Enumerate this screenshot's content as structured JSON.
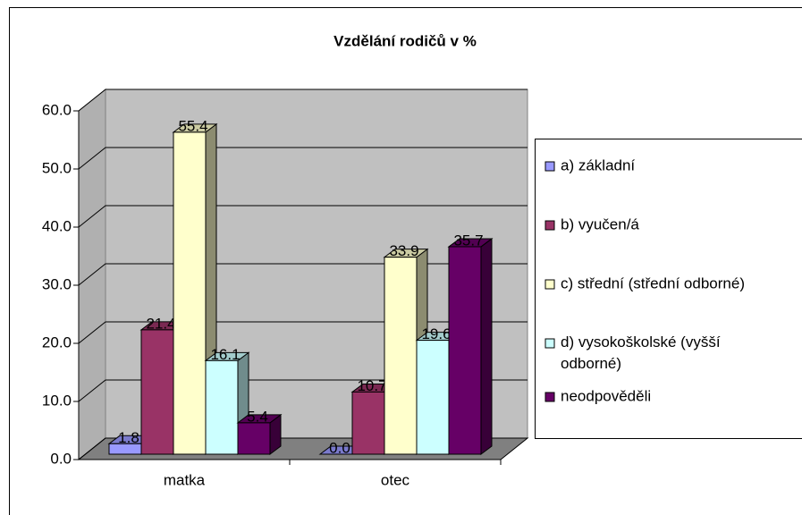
{
  "chart_data": {
    "type": "bar3d",
    "title": "Vzdělání rodičů v %",
    "categories": [
      "matka",
      "otec"
    ],
    "series": [
      {
        "name": "a) základní",
        "color": "#9999ff",
        "values": [
          1.8,
          0.0
        ],
        "value_labels": [
          "1.8",
          "0.0"
        ]
      },
      {
        "name": "b) vyučen/á",
        "color": "#993366",
        "values": [
          21.4,
          10.7
        ]
      },
      {
        "name": "c) střední (střední odborné)",
        "color": "#ffffcc",
        "values": [
          55.4,
          33.9
        ]
      },
      {
        "name": "d) vysokoškolské (vyšší odborné)",
        "color": "#ccffff",
        "values": [
          16.1,
          19.6
        ]
      },
      {
        "name": "neodpověděli",
        "color": "#660066",
        "values": [
          5.4,
          35.7
        ]
      }
    ],
    "ylim": [
      0,
      60
    ],
    "yticks": [
      {
        "value": 0,
        "label": "0.0"
      },
      {
        "value": 10,
        "label": "10.0"
      },
      {
        "value": 20,
        "label": "20.0"
      },
      {
        "value": 30,
        "label": "30.0"
      },
      {
        "value": 40,
        "label": "40.0"
      },
      {
        "value": 50,
        "label": "50.0"
      },
      {
        "value": 60,
        "label": "60.0"
      }
    ],
    "grid": true,
    "legend": "right"
  }
}
